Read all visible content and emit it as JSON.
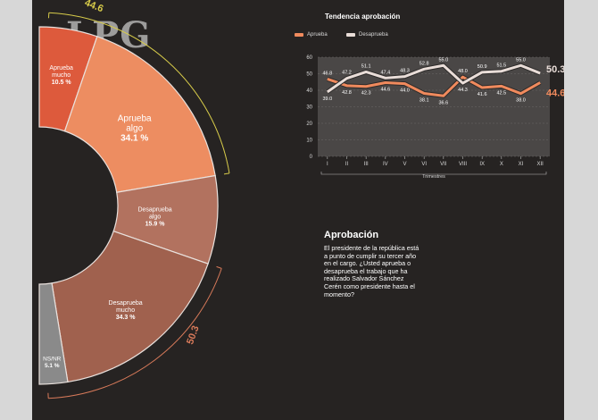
{
  "logo_text": "LPG",
  "donut": {
    "slices": [
      {
        "label": "Aprueba mucho",
        "value": 10.5,
        "display": "10.5 %",
        "color": "#dd5a3c"
      },
      {
        "label": "Aprueba algo",
        "value": 34.1,
        "display": "34.1 %",
        "color": "#ed8d61"
      },
      {
        "label": "Desaprueba algo",
        "value": 15.9,
        "display": "15.9 %",
        "color": "#b2725f"
      },
      {
        "label": "Desaprueba mucho",
        "value": 34.3,
        "display": "34.3 %",
        "color": "#a0614e"
      },
      {
        "label": "NS/NR",
        "value": 5.1,
        "display": "5.1 %",
        "color": "#8a8a8a"
      }
    ],
    "total_approve": "44.6",
    "total_disapprove": "50.3",
    "approve_color": "#d8cc4a",
    "disapprove_color": "#d87a5a"
  },
  "chart_data": {
    "type": "line",
    "title": "Tendencia aprobación",
    "x": [
      "I",
      "II",
      "III",
      "IV",
      "V",
      "VI",
      "VII",
      "VIII",
      "IX",
      "X",
      "XI",
      "XII"
    ],
    "xlabel": "Trimestres",
    "ylim": [
      0,
      60
    ],
    "yticks": [
      0,
      10,
      20,
      30,
      40,
      50,
      60
    ],
    "series": [
      {
        "name": "Aprueba",
        "color": "#f08a5d",
        "values": [
          46.8,
          42.8,
          42.3,
          44.6,
          44.0,
          38.1,
          36.6,
          48.0,
          41.6,
          42.5,
          38.0,
          44.6
        ],
        "labels": [
          "46.8",
          "42.8",
          "42.3",
          "44.6",
          "44.0",
          "38.1",
          "36.6",
          "48.0",
          "41.6",
          "42.5",
          "38.0",
          "44.6"
        ]
      },
      {
        "name": "Desaprueba",
        "color": "#e9ddd8",
        "values": [
          39.0,
          47.2,
          51.1,
          47.4,
          48.3,
          52.8,
          55.0,
          44.3,
          50.9,
          51.5,
          55.0,
          50.3
        ],
        "labels": [
          "39.0",
          "47.2",
          "51.1",
          "47.4",
          "48.3",
          "52.8",
          "55.0",
          "44.3",
          "50.9",
          "51.5",
          "55.0",
          "50.3"
        ]
      }
    ],
    "end_labels": {
      "approve": "44.6",
      "disapprove": "50.3"
    }
  },
  "text": {
    "title": "Aprobación",
    "body": "El presidente de la república está a punto de cumplir su tercer año en el cargo. ¿Usted aprueba o desaprueba el trabajo que ha realizado Salvador Sánchez Cerén como presidente hasta el momento?"
  }
}
